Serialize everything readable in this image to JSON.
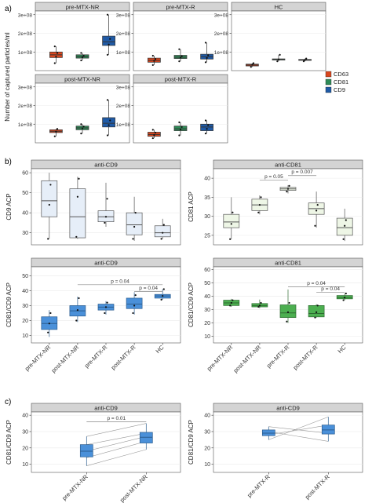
{
  "colors": {
    "CD63": "#d9461e",
    "CD81": "#2e8b57",
    "CD9": "#1f5aa6",
    "strip": "#d4d4d4"
  },
  "sections": {
    "a": "a)",
    "b": "b)",
    "c": "c)"
  },
  "legend": [
    {
      "label": "CD63",
      "color": "#d9461e"
    },
    {
      "label": "CD81",
      "color": "#2e8b57"
    },
    {
      "label": "CD9",
      "color": "#1f5aa6"
    }
  ],
  "chart_data": [
    {
      "id": "a",
      "type": "box",
      "ylabel": "Number of captured particles/ml",
      "yticks": [
        {
          "v": 100000000,
          "label": "1e+08"
        },
        {
          "v": 200000000,
          "label": "2e+08"
        },
        {
          "v": 300000000,
          "label": "3e+08"
        }
      ],
      "ylim": [
        0,
        320000000
      ],
      "series_order": [
        "CD63",
        "CD81",
        "CD9"
      ],
      "panels": [
        {
          "title": "pre-MTX-NR",
          "boxes": [
            {
              "series": "CD63",
              "min": 40000000,
              "q1": 70000000,
              "median": 85000000,
              "q3": 100000000,
              "max": 130000000,
              "points": [
                40000000,
                75000000,
                95000000,
                130000000
              ]
            },
            {
              "series": "CD81",
              "min": 55000000,
              "q1": 67000000,
              "median": 75000000,
              "q3": 85000000,
              "max": 95000000,
              "points": [
                55000000,
                72000000,
                80000000,
                95000000
              ]
            },
            {
              "series": "CD9",
              "min": 85000000,
              "q1": 135000000,
              "median": 155000000,
              "q3": 185000000,
              "max": 300000000,
              "points": [
                85000000,
                140000000,
                170000000,
                300000000
              ]
            }
          ]
        },
        {
          "title": "pre-MTX-R",
          "boxes": [
            {
              "series": "CD63",
              "min": 30000000,
              "q1": 45000000,
              "median": 55000000,
              "q3": 67000000,
              "max": 80000000,
              "points": [
                30000000,
                52000000,
                62000000,
                80000000
              ]
            },
            {
              "series": "CD81",
              "min": 50000000,
              "q1": 65000000,
              "median": 72000000,
              "q3": 82000000,
              "max": 115000000,
              "points": [
                50000000,
                70000000,
                78000000,
                115000000
              ]
            },
            {
              "series": "CD9",
              "min": 45000000,
              "q1": 62000000,
              "median": 75000000,
              "q3": 88000000,
              "max": 150000000,
              "points": [
                45000000,
                68000000,
                82000000,
                150000000
              ]
            }
          ]
        },
        {
          "title": "HC",
          "boxes": [
            {
              "series": "CD63",
              "min": 20000000,
              "q1": 25000000,
              "median": 30000000,
              "q3": 35000000,
              "max": 40000000,
              "points": [
                20000000,
                32000000,
                40000000
              ]
            },
            {
              "series": "CD81",
              "min": 50000000,
              "q1": 57000000,
              "median": 60000000,
              "q3": 63000000,
              "max": 85000000,
              "points": [
                50000000,
                60000000,
                85000000
              ]
            },
            {
              "series": "CD9",
              "min": 50000000,
              "q1": 55000000,
              "median": 57000000,
              "q3": 60000000,
              "max": 65000000,
              "points": [
                50000000,
                57000000,
                65000000
              ]
            }
          ]
        },
        {
          "title": "post-MTX-NR",
          "boxes": [
            {
              "series": "CD63",
              "min": 35000000,
              "q1": 55000000,
              "median": 62000000,
              "q3": 70000000,
              "max": 75000000,
              "points": [
                35000000,
                60000000,
                75000000
              ]
            },
            {
              "series": "CD81",
              "min": 50000000,
              "q1": 70000000,
              "median": 80000000,
              "q3": 90000000,
              "max": 100000000,
              "points": [
                50000000,
                78000000,
                88000000,
                100000000
              ]
            },
            {
              "series": "CD9",
              "min": 40000000,
              "q1": 85000000,
              "median": 105000000,
              "q3": 135000000,
              "max": 230000000,
              "points": [
                40000000,
                95000000,
                120000000,
                230000000
              ]
            }
          ]
        },
        {
          "title": "post-MTX-R",
          "boxes": [
            {
              "series": "CD63",
              "min": 25000000,
              "q1": 35000000,
              "median": 45000000,
              "q3": 57000000,
              "max": 70000000,
              "points": [
                25000000,
                42000000,
                55000000,
                70000000
              ]
            },
            {
              "series": "CD81",
              "min": 40000000,
              "q1": 65000000,
              "median": 75000000,
              "q3": 90000000,
              "max": 110000000,
              "points": [
                40000000,
                72000000,
                85000000,
                110000000
              ]
            },
            {
              "series": "CD9",
              "min": 50000000,
              "q1": 65000000,
              "median": 85000000,
              "q3": 100000000,
              "max": 120000000,
              "points": [
                50000000,
                75000000,
                95000000,
                120000000
              ]
            }
          ]
        }
      ]
    },
    {
      "id": "b1",
      "type": "box",
      "title": "anti-CD9",
      "ylabel": "CD9 ACP",
      "yticks": [
        30,
        40,
        50,
        60
      ],
      "ylim": [
        24,
        62
      ],
      "categories": [
        "pre-MTX-NR",
        "post-MTX-NR",
        "pre-MTX-R",
        "post-MTX-R",
        "HC"
      ],
      "box_fill": "#e6eef8",
      "box_stroke": "#555555",
      "boxes": [
        {
          "min": 27,
          "q1": 38,
          "median": 46,
          "q3": 56,
          "max": 60,
          "points": [
            27,
            44,
            54
          ]
        },
        {
          "min": 27,
          "q1": 27.5,
          "median": 38,
          "q3": 52,
          "max": 58,
          "points": [
            28,
            48,
            57
          ]
        },
        {
          "min": 33,
          "q1": 35.5,
          "median": 38,
          "q3": 41,
          "max": 55,
          "points": [
            35,
            38,
            47
          ]
        },
        {
          "min": 26,
          "q1": 29,
          "median": 34,
          "q3": 40,
          "max": 48,
          "points": [
            27,
            33,
            40
          ]
        },
        {
          "min": 27,
          "q1": 28,
          "median": 30,
          "q3": 33.5,
          "max": 37,
          "points": [
            27,
            30,
            34
          ]
        }
      ]
    },
    {
      "id": "b2",
      "type": "box",
      "title": "anti-CD81",
      "ylabel": "CD81 ACP",
      "yticks": [
        25,
        30,
        35,
        40
      ],
      "ylim": [
        22.5,
        42.5
      ],
      "categories": [
        "pre-MTX-NR",
        "post-MTX-NR",
        "pre-MTX-R",
        "post-MTX-R",
        "HC"
      ],
      "box_fill": "#eef6e6",
      "box_stroke": "#555555",
      "brackets": [
        {
          "from": 1,
          "to": 2,
          "y": 39.5,
          "label": "p = 0.05"
        },
        {
          "from": 2,
          "to": 3,
          "y": 40.7,
          "label": "p = 0.007"
        }
      ],
      "boxes": [
        {
          "min": 24,
          "q1": 27,
          "median": 28.5,
          "q3": 30.5,
          "max": 35,
          "points": [
            24,
            28,
            31
          ]
        },
        {
          "min": 30.5,
          "q1": 31.5,
          "median": 33,
          "q3": 34.5,
          "max": 35.5,
          "points": [
            31,
            33,
            35
          ]
        },
        {
          "min": 36,
          "q1": 36.8,
          "median": 37.2,
          "q3": 37.6,
          "max": 38.2,
          "points": [
            36.5,
            37.2,
            38
          ]
        },
        {
          "min": 27,
          "q1": 30.5,
          "median": 32,
          "q3": 33.5,
          "max": 36.5,
          "points": [
            27.5,
            31.5,
            33
          ]
        },
        {
          "min": 23.5,
          "q1": 25,
          "median": 27,
          "q3": 29.5,
          "max": 32,
          "points": [
            24,
            27.5,
            29
          ]
        }
      ]
    },
    {
      "id": "b3",
      "type": "box",
      "title": "anti-CD9",
      "ylabel": "CD81/CD9 ACP",
      "yticks": [
        10,
        20,
        30,
        40,
        50
      ],
      "ylim": [
        5,
        56
      ],
      "categories": [
        "pre-MTX-NR",
        "post-MTX-NR",
        "pre-MTX-R",
        "post-MTX-R",
        "HC"
      ],
      "box_fill": "#4a90d9",
      "box_stroke": "#2b5d8f",
      "brackets": [
        {
          "from": 1,
          "to": 4,
          "y": 44,
          "label": "p = 0.04"
        },
        {
          "from": 3,
          "to": 4,
          "y": 39.5,
          "label": "p = 0.04"
        }
      ],
      "boxes": [
        {
          "min": 9,
          "q1": 14,
          "median": 18,
          "q3": 22.5,
          "max": 27,
          "points": [
            12,
            18,
            25
          ]
        },
        {
          "min": 19,
          "q1": 23,
          "median": 26.5,
          "q3": 30,
          "max": 36,
          "points": [
            20,
            27,
            35
          ]
        },
        {
          "min": 24,
          "q1": 27,
          "median": 29,
          "q3": 31,
          "max": 33,
          "points": [
            25,
            29,
            32
          ]
        },
        {
          "min": 24,
          "q1": 28,
          "median": 31,
          "q3": 35,
          "max": 39,
          "points": [
            25,
            30,
            37
          ]
        },
        {
          "min": 34,
          "q1": 35,
          "median": 36.5,
          "q3": 37.5,
          "max": 41,
          "points": [
            34,
            36.5,
            41
          ]
        }
      ]
    },
    {
      "id": "b4",
      "type": "box",
      "title": "anti-CD81",
      "ylabel": "CD81/CD9 ACP",
      "yticks": [
        10,
        20,
        30,
        40,
        50,
        60
      ],
      "ylim": [
        5,
        62
      ],
      "categories": [
        "pre-MTX-NR",
        "post-MTX-NR",
        "pre-MTX-R",
        "post-MTX-R",
        "HC"
      ],
      "box_fill": "#4caf50",
      "box_stroke": "#2e6b31",
      "brackets": [
        {
          "from": 2,
          "to": 4,
          "y": 47,
          "label": "p = 0.04"
        },
        {
          "from": 3,
          "to": 4,
          "y": 43,
          "label": "p = 0.04"
        }
      ],
      "boxes": [
        {
          "min": 32,
          "q1": 33,
          "median": 35,
          "q3": 37,
          "max": 38,
          "points": [
            33,
            35,
            37
          ]
        },
        {
          "min": 31,
          "q1": 32,
          "median": 33,
          "q3": 34.5,
          "max": 37.5,
          "points": [
            32,
            33,
            35
          ]
        },
        {
          "min": 20,
          "q1": 24,
          "median": 27.5,
          "q3": 33.5,
          "max": 45,
          "points": [
            21,
            28,
            35
          ]
        },
        {
          "min": 24,
          "q1": 24.5,
          "median": 27,
          "q3": 33,
          "max": 34,
          "points": [
            24,
            28,
            33
          ]
        },
        {
          "min": 37,
          "q1": 38,
          "median": 39,
          "q3": 40.5,
          "max": 42,
          "points": [
            37,
            39,
            42
          ]
        }
      ]
    },
    {
      "id": "c1",
      "type": "paired-box",
      "title": "anti-CD9",
      "ylabel": "CD81/CD9 ACP",
      "yticks": [
        10,
        20,
        30,
        40
      ],
      "ylim": [
        5,
        42
      ],
      "categories": [
        "pre-MTX-NR",
        "post-MTX-NR"
      ],
      "box_fill": "#4a90d9",
      "box_stroke": "#2b5d8f",
      "brackets": [
        {
          "from": 0,
          "to": 1,
          "y": 36,
          "label": "p = 0.01"
        }
      ],
      "boxes": [
        {
          "min": 9,
          "q1": 14.5,
          "median": 18,
          "q3": 22,
          "max": 27
        },
        {
          "min": 19,
          "q1": 23,
          "median": 26.5,
          "q3": 29.5,
          "max": 35
        }
      ],
      "pairs": [
        [
          9,
          19
        ],
        [
          14,
          24
        ],
        [
          18,
          27
        ],
        [
          22,
          29
        ],
        [
          27,
          35
        ]
      ]
    },
    {
      "id": "c2",
      "type": "paired-box",
      "title": "anti-CD9",
      "ylabel": "CD81/CD9 ACP",
      "yticks": [
        10,
        20,
        30,
        40
      ],
      "ylim": [
        5,
        42
      ],
      "categories": [
        "pre-MTX-R",
        "post-MTX-R"
      ],
      "box_fill": "#4a90d9",
      "box_stroke": "#2b5d8f",
      "boxes": [
        {
          "min": 25,
          "q1": 27.5,
          "median": 29,
          "q3": 31,
          "max": 33
        },
        {
          "min": 24,
          "q1": 28.5,
          "median": 31,
          "q3": 34,
          "max": 39
        }
      ],
      "pairs": [
        [
          25,
          39
        ],
        [
          28,
          34
        ],
        [
          30,
          24
        ],
        [
          33,
          29
        ]
      ]
    }
  ]
}
